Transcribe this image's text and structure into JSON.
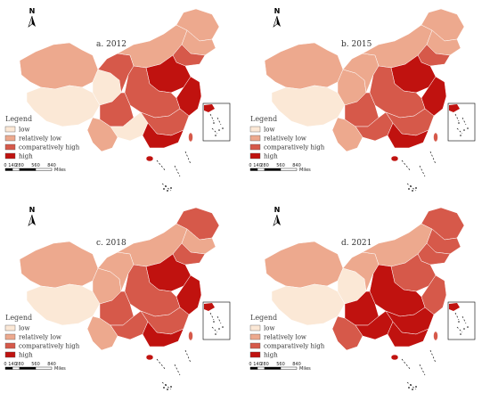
{
  "colors": {
    "low": "#fbe8d6",
    "relatively_low": "#eda98e",
    "comparatively_high": "#d6594a",
    "high": "#c0120f"
  },
  "legend": {
    "title": "Legend",
    "items": [
      {
        "key": "low",
        "label": "low"
      },
      {
        "key": "relatively_low",
        "label": "relatively low"
      },
      {
        "key": "comparatively_high",
        "label": "comparatively high"
      },
      {
        "key": "high",
        "label": "high"
      }
    ]
  },
  "scale_bar": {
    "ticks": [
      "0",
      "140",
      "280",
      "560",
      "840"
    ],
    "unit": "Miles"
  },
  "north_arrow": {
    "label": "N"
  },
  "panels": [
    {
      "title": "a. 2012",
      "regions": {
        "xinjiang": "relatively_low",
        "tibet": "low",
        "qinghai": "low",
        "gansu": "comparatively_high",
        "inner_mongolia": "relatively_low",
        "heilongjiang": "relatively_low",
        "jilin": "relatively_low",
        "liaoning": "comparatively_high",
        "north_china_plain": "high",
        "central": "comparatively_high",
        "sichuan": "comparatively_high",
        "yunnan": "relatively_low",
        "southwest": "low",
        "jiangnan": "comparatively_high",
        "guangdong": "high",
        "east_coast": "high"
      }
    },
    {
      "title": "b. 2015",
      "regions": {
        "xinjiang": "relatively_low",
        "tibet": "low",
        "qinghai": "relatively_low",
        "gansu": "relatively_low",
        "inner_mongolia": "relatively_low",
        "heilongjiang": "relatively_low",
        "jilin": "relatively_low",
        "liaoning": "comparatively_high",
        "north_china_plain": "high",
        "central": "comparatively_high",
        "sichuan": "comparatively_high",
        "yunnan": "relatively_low",
        "southwest": "comparatively_high",
        "jiangnan": "comparatively_high",
        "guangdong": "high",
        "east_coast": "high"
      }
    },
    {
      "title": "c. 2018",
      "regions": {
        "xinjiang": "relatively_low",
        "tibet": "low",
        "qinghai": "relatively_low",
        "gansu": "relatively_low",
        "inner_mongolia": "relatively_low",
        "heilongjiang": "comparatively_high",
        "jilin": "relatively_low",
        "liaoning": "comparatively_high",
        "north_china_plain": "high",
        "central": "comparatively_high",
        "sichuan": "comparatively_high",
        "yunnan": "relatively_low",
        "southwest": "comparatively_high",
        "jiangnan": "comparatively_high",
        "guangdong": "high",
        "east_coast": "high"
      }
    },
    {
      "title": "d. 2021",
      "regions": {
        "xinjiang": "relatively_low",
        "tibet": "low",
        "qinghai": "low",
        "gansu": "relatively_low",
        "inner_mongolia": "relatively_low",
        "heilongjiang": "comparatively_high",
        "jilin": "comparatively_high",
        "liaoning": "comparatively_high",
        "north_china_plain": "comparatively_high",
        "central": "high",
        "sichuan": "high",
        "yunnan": "comparatively_high",
        "southwest": "high",
        "jiangnan": "high",
        "guangdong": "high",
        "east_coast": "comparatively_high"
      }
    }
  ]
}
